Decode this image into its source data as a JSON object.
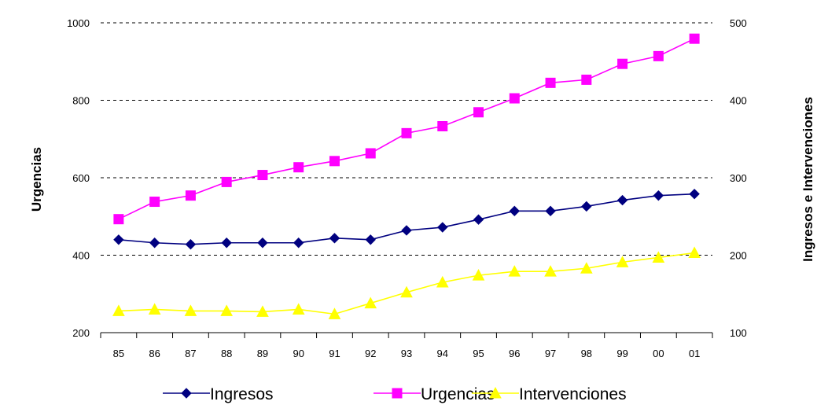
{
  "chart_data": {
    "type": "line",
    "categories": [
      "85",
      "86",
      "87",
      "88",
      "89",
      "90",
      "91",
      "92",
      "93",
      "94",
      "95",
      "96",
      "97",
      "98",
      "99",
      "00",
      "01"
    ],
    "y_left": {
      "label": "Urgencias",
      "ylim": [
        200,
        1000
      ],
      "ticks": [
        "200",
        "400",
        "600",
        "800",
        "1000"
      ]
    },
    "y_right": {
      "label": "Ingresos e Intervenciones",
      "ylim": [
        100,
        500
      ],
      "ticks": [
        "100",
        "200",
        "300",
        "400",
        "500"
      ]
    },
    "grid": true,
    "legend_position": "bottom",
    "series": [
      {
        "name": "Ingresos",
        "axis": "right",
        "color": "#000080",
        "marker": "diamond",
        "values": [
          220,
          216,
          214,
          216,
          216,
          216,
          222,
          220,
          232,
          236,
          246,
          257,
          257,
          263,
          271,
          277,
          279
        ]
      },
      {
        "name": "Urgencias",
        "axis": "left",
        "color": "#ff00ff",
        "marker": "square",
        "values": [
          493,
          538,
          554,
          589,
          607,
          627,
          643,
          663,
          715,
          733,
          769,
          805,
          845,
          853,
          894,
          914,
          959
        ]
      },
      {
        "name": "Intervenciones",
        "axis": "right",
        "color": "#ffff00",
        "marker": "triangle",
        "values": [
          128,
          130,
          128,
          128,
          127,
          130,
          124,
          138,
          152,
          165,
          174,
          179,
          179,
          183,
          191,
          197,
          203
        ]
      }
    ]
  }
}
